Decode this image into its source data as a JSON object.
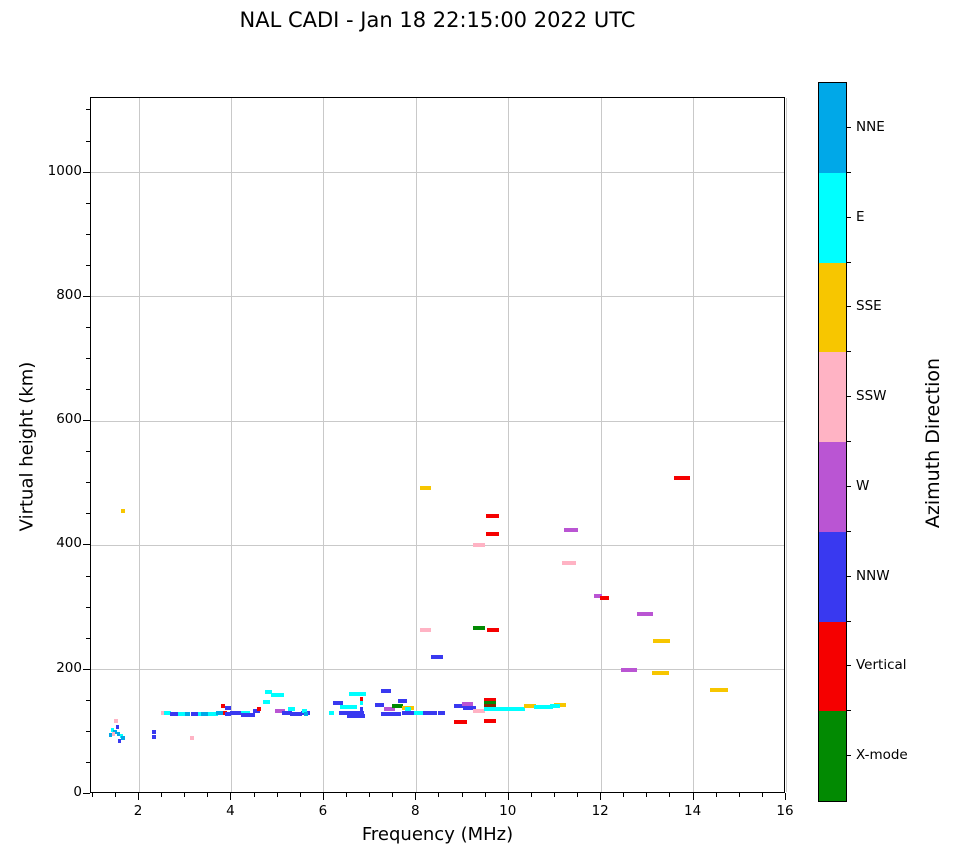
{
  "title": "NAL CADI - Jan 18 22:15:00 2022 UTC",
  "chart_data": {
    "type": "scatter",
    "title": "NAL CADI - Jan 18 22:15:00 2022 UTC",
    "xlabel": "Frequency (MHz)",
    "ylabel": "Virtual height (km)",
    "xlim": [
      0.96,
      16.0
    ],
    "ylim": [
      0,
      1120
    ],
    "xticks": [
      2,
      4,
      6,
      8,
      10,
      12,
      14,
      16
    ],
    "yticks": [
      0,
      200,
      400,
      600,
      800,
      1000
    ],
    "x_minor_step": 0.5,
    "y_minor_step": 50,
    "grid": true,
    "legend_position": "right-colorbar",
    "colorbar": {
      "label": "Azimuth Direction",
      "categories_top_to_bottom": [
        {
          "name": "NNE",
          "color": "#00a8e8"
        },
        {
          "name": "E",
          "color": "#00ffff"
        },
        {
          "name": "SSE",
          "color": "#f7c600"
        },
        {
          "name": "SSW",
          "color": "#ffb3c4"
        },
        {
          "name": "W",
          "color": "#ba55d3"
        },
        {
          "name": "NNW",
          "color": "#3939f0"
        },
        {
          "name": "Vertical",
          "color": "#f50000"
        },
        {
          "name": "X-mode",
          "color": "#028a02"
        }
      ]
    },
    "colors": {
      "nne": "#00a8e8",
      "e": "#00ffff",
      "sse": "#f7c600",
      "ssw": "#ffb3c4",
      "w": "#ba55d3",
      "nnw": "#3939f0",
      "vert": "#f50000",
      "x": "#028a02",
      "maroon": "#8b2500"
    },
    "points_format": [
      "freq_mhz",
      "height_km",
      "width_mhz",
      "direction_key"
    ],
    "points": [
      [
        1.5,
        118,
        0.07,
        "ssw"
      ],
      [
        1.53,
        108,
        0.07,
        "nnw"
      ],
      [
        1.42,
        103,
        0.07,
        "e"
      ],
      [
        1.48,
        100,
        0.07,
        "nne"
      ],
      [
        1.56,
        97,
        0.07,
        "nne"
      ],
      [
        1.62,
        93,
        0.07,
        "e"
      ],
      [
        1.65,
        90,
        0.1,
        "nne"
      ],
      [
        1.44,
        97,
        0.07,
        "ssw"
      ],
      [
        1.58,
        86,
        0.07,
        "nnw"
      ],
      [
        1.38,
        95,
        0.07,
        "nne"
      ],
      [
        1.65,
        455,
        0.08,
        "sse"
      ],
      [
        2.32,
        100,
        0.08,
        "nnw"
      ],
      [
        2.32,
        92,
        0.08,
        "nnw"
      ],
      [
        2.52,
        131,
        0.07,
        "ssw"
      ],
      [
        2.62,
        130,
        0.15,
        "e"
      ],
      [
        2.75,
        129,
        0.18,
        "nnw"
      ],
      [
        2.92,
        128,
        0.15,
        "e"
      ],
      [
        3.05,
        129,
        0.12,
        "nne"
      ],
      [
        3.2,
        128,
        0.15,
        "nnw"
      ],
      [
        3.33,
        129,
        0.12,
        "e"
      ],
      [
        3.45,
        128,
        0.2,
        "nne"
      ],
      [
        3.15,
        90,
        0.08,
        "ssw"
      ],
      [
        3.6,
        129,
        0.2,
        "e"
      ],
      [
        3.75,
        130,
        0.15,
        "nne"
      ],
      [
        3.82,
        141,
        0.08,
        "vert"
      ],
      [
        3.86,
        130,
        0.08,
        "vert"
      ],
      [
        3.93,
        138,
        0.12,
        "nnw"
      ],
      [
        3.93,
        128,
        0.12,
        "nnw"
      ],
      [
        4.1,
        130,
        0.25,
        "nnw"
      ],
      [
        4.3,
        131,
        0.2,
        "e"
      ],
      [
        4.35,
        127,
        0.3,
        "nnw"
      ],
      [
        4.55,
        133,
        0.15,
        "nnw"
      ],
      [
        4.6,
        137,
        0.08,
        "vert"
      ],
      [
        4.75,
        148,
        0.15,
        "e"
      ],
      [
        4.8,
        164,
        0.15,
        "e"
      ],
      [
        5.0,
        160,
        0.28,
        "e"
      ],
      [
        5.05,
        133,
        0.22,
        "w"
      ],
      [
        5.3,
        136,
        0.15,
        "e"
      ],
      [
        5.2,
        130,
        0.2,
        "nnw"
      ],
      [
        5.4,
        128,
        0.25,
        "nnw"
      ],
      [
        5.6,
        131,
        0.2,
        "nnw"
      ],
      [
        5.58,
        134,
        0.1,
        "e"
      ],
      [
        5.62,
        129,
        0.08,
        "nne"
      ],
      [
        6.3,
        146,
        0.22,
        "nnw"
      ],
      [
        6.73,
        161,
        0.37,
        "e"
      ],
      [
        6.54,
        140,
        0.37,
        "e"
      ],
      [
        6.6,
        131,
        0.55,
        "nnw"
      ],
      [
        6.7,
        126,
        0.4,
        "nnw"
      ],
      [
        6.17,
        131,
        0.1,
        "e"
      ],
      [
        6.82,
        153,
        0.07,
        "vert"
      ],
      [
        6.82,
        147,
        0.07,
        "e"
      ],
      [
        6.82,
        136,
        0.07,
        "nnw"
      ],
      [
        7.35,
        166,
        0.22,
        "nnw"
      ],
      [
        7.2,
        143,
        0.2,
        "nnw"
      ],
      [
        7.42,
        136,
        0.25,
        "w"
      ],
      [
        7.6,
        141,
        0.24,
        "x"
      ],
      [
        7.82,
        138,
        0.26,
        "sse"
      ],
      [
        7.45,
        129,
        0.45,
        "nnw"
      ],
      [
        7.9,
        131,
        0.42,
        "nnw"
      ],
      [
        7.82,
        137,
        0.15,
        "e"
      ],
      [
        7.7,
        150,
        0.2,
        "nnw"
      ],
      [
        8.05,
        131,
        0.22,
        "e"
      ],
      [
        8.3,
        131,
        0.3,
        "nnw"
      ],
      [
        8.55,
        130,
        0.15,
        "nnw"
      ],
      [
        8.45,
        220,
        0.26,
        "nnw"
      ],
      [
        8.2,
        493,
        0.24,
        "sse"
      ],
      [
        8.2,
        264,
        0.24,
        "ssw"
      ],
      [
        8.95,
        141,
        0.28,
        "nnw"
      ],
      [
        8.95,
        116,
        0.28,
        "vert"
      ],
      [
        9.1,
        145,
        0.24,
        "w"
      ],
      [
        9.15,
        138,
        0.28,
        "nnw"
      ],
      [
        9.35,
        133,
        0.26,
        "ssw"
      ],
      [
        9.6,
        151,
        0.26,
        "vert"
      ],
      [
        9.6,
        146,
        0.26,
        "x"
      ],
      [
        9.6,
        142,
        0.26,
        "maroon"
      ],
      [
        9.6,
        136,
        0.28,
        "e"
      ],
      [
        9.6,
        118,
        0.26,
        "vert"
      ],
      [
        9.35,
        267,
        0.26,
        "x"
      ],
      [
        9.65,
        264,
        0.26,
        "vert"
      ],
      [
        9.35,
        400,
        0.26,
        "ssw"
      ],
      [
        9.65,
        448,
        0.28,
        "vert"
      ],
      [
        9.65,
        418,
        0.28,
        "vert"
      ],
      [
        10.05,
        137,
        0.6,
        "e"
      ],
      [
        10.45,
        141,
        0.26,
        "sse"
      ],
      [
        10.75,
        140,
        0.4,
        "e"
      ],
      [
        11.1,
        144,
        0.26,
        "sse"
      ],
      [
        11.0,
        141,
        0.22,
        "e"
      ],
      [
        11.35,
        425,
        0.3,
        "w"
      ],
      [
        11.3,
        372,
        0.3,
        "ssw"
      ],
      [
        11.93,
        318,
        0.16,
        "w"
      ],
      [
        12.08,
        316,
        0.2,
        "vert"
      ],
      [
        12.6,
        200,
        0.36,
        "w"
      ],
      [
        12.95,
        289,
        0.34,
        "w"
      ],
      [
        13.3,
        246,
        0.36,
        "sse"
      ],
      [
        13.28,
        194,
        0.36,
        "sse"
      ],
      [
        13.75,
        508,
        0.34,
        "vert"
      ],
      [
        14.55,
        168,
        0.38,
        "sse"
      ]
    ]
  }
}
